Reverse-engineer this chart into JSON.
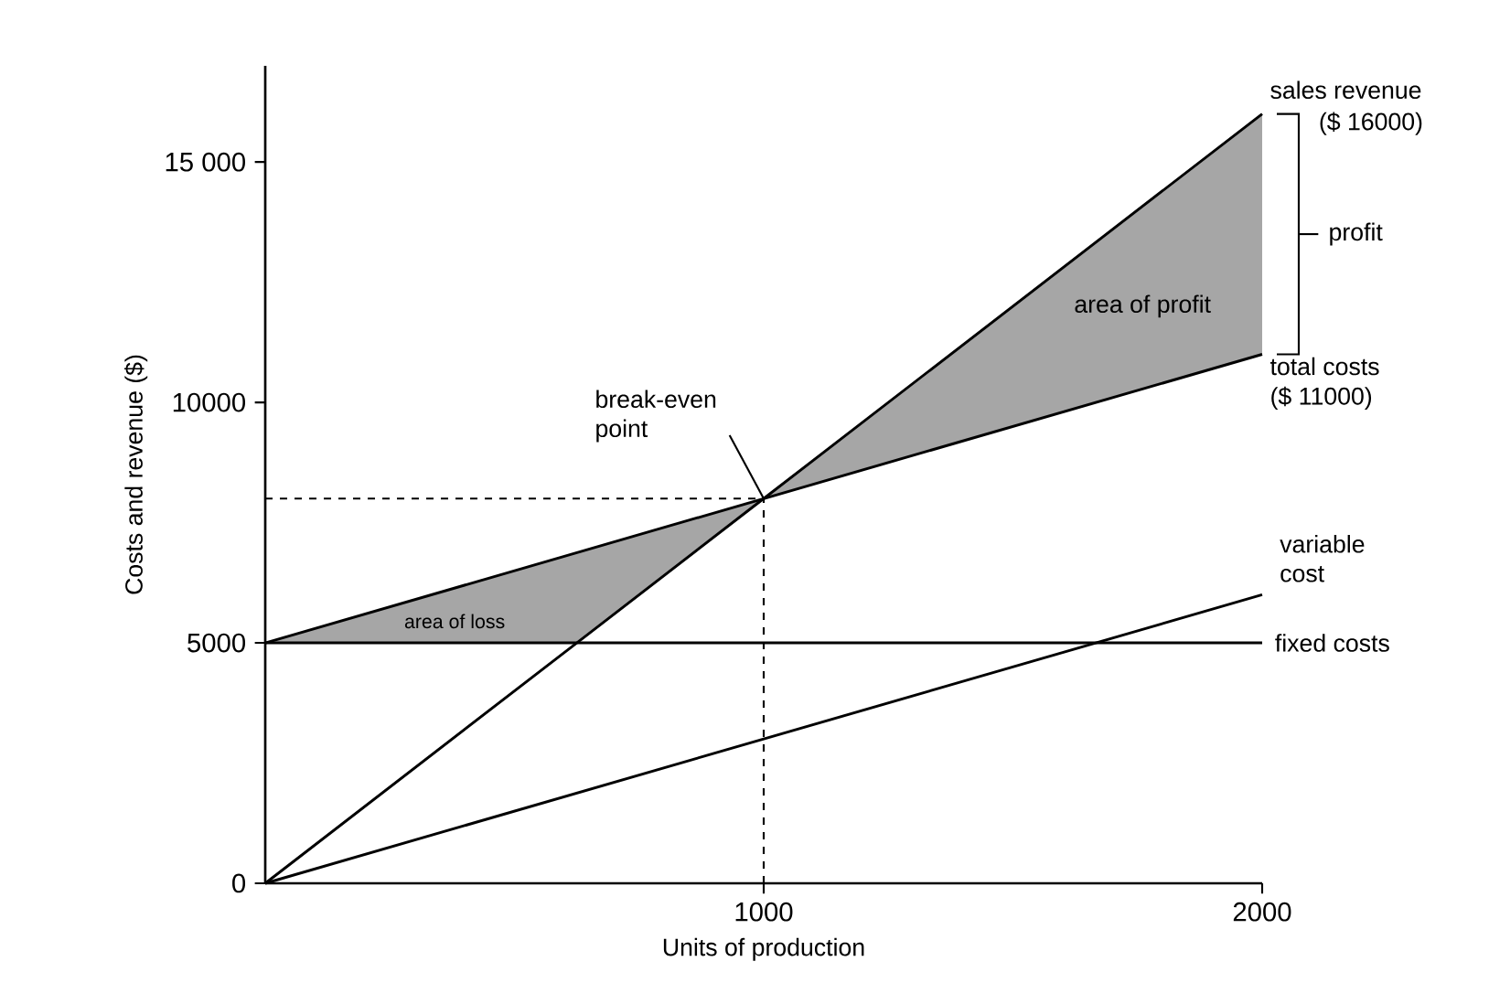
{
  "chart_data": {
    "type": "line",
    "xlabel": "Units of production",
    "ylabel": "Costs and revenue ($)",
    "x": [
      0,
      1000,
      2000
    ],
    "series": [
      {
        "name": "sales revenue",
        "color": "#000000",
        "x": [
          0,
          625,
          1000,
          2000
        ],
        "values": [
          0,
          5000,
          8000,
          16000
        ],
        "lower": [
          5000,
          5000,
          8000,
          11000
        ],
        "upper": [
          5000,
          6875,
          8000,
          16000
        ]
      },
      {
        "name": "total costs",
        "color": "#000000",
        "values": [
          5000,
          8000,
          11000
        ]
      },
      {
        "name": "variable cost",
        "color": "#000000",
        "values": [
          0,
          3000,
          6000
        ]
      },
      {
        "name": "fixed costs",
        "color": "#000000",
        "values": [
          5000,
          5000,
          5000
        ]
      }
    ],
    "xlim": [
      0,
      2000
    ],
    "ylim": [
      0,
      17000
    ],
    "xticks": [
      1000,
      2000
    ],
    "yticks": [
      0,
      5000,
      10000,
      {
        "value": 15000,
        "label": "15 000"
      }
    ],
    "ref_lines": [
      {
        "axis": "x",
        "value": 1000,
        "line_style": "dashed"
      },
      {
        "axis": "y",
        "value": 8000,
        "line_style": "dashed"
      }
    ],
    "annotations": [
      {
        "text": "break-even point",
        "x": 1000,
        "y": 8000
      },
      "area of loss",
      "area of profit",
      "($ 16000)",
      "($ 11000)",
      "profit"
    ],
    "grid": false,
    "legend": false,
    "marker": "none",
    "line_style": "solid"
  }
}
